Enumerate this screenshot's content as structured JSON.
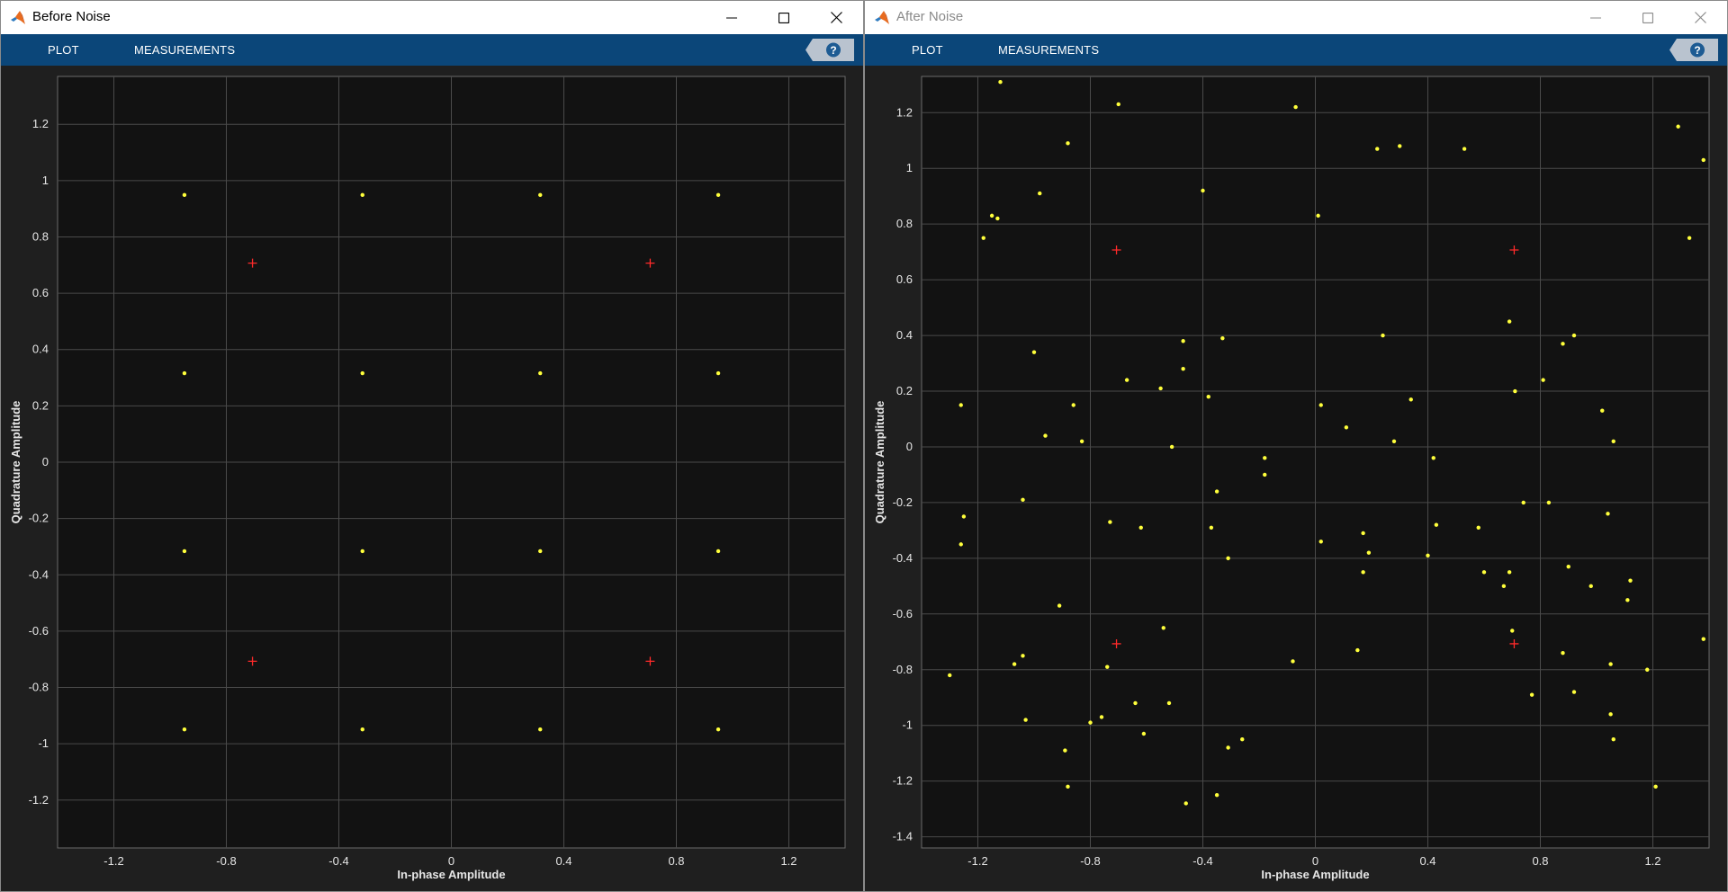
{
  "colors": {
    "toolstrip": "#0b4679",
    "plot_bg": "#121212",
    "frame_bg": "#1f1f1f",
    "grid": "#4a4a4a",
    "sample": "#ffff3b",
    "reference": "#ff2a2a"
  },
  "windows": [
    {
      "id": "left",
      "title": "Before Noise",
      "active": true,
      "tabs": [
        "PLOT",
        "MEASUREMENTS"
      ],
      "help_icon": "question-icon",
      "chart_data": {
        "type": "scatter",
        "title": "",
        "xlabel": "In-phase Amplitude",
        "ylabel": "Quadrature Amplitude",
        "xlim": [
          -1.4,
          1.4
        ],
        "ylim": [
          -1.37,
          1.37
        ],
        "xticks": [
          -1.2,
          -0.8,
          -0.4,
          0,
          0.4,
          0.8,
          1.2
        ],
        "xtick_labels": [
          "-1.2",
          "-0.8",
          "-0.4",
          "0",
          "0.4",
          "0.8",
          "1.2"
        ],
        "yticks": [
          -1.2,
          -1,
          -0.8,
          -0.6,
          -0.4,
          -0.2,
          0,
          0.2,
          0.4,
          0.6,
          0.8,
          1,
          1.2
        ],
        "ytick_labels": [
          "-1.2",
          "-1",
          "-0.8",
          "-0.6",
          "-0.4",
          "-0.2",
          "0",
          "0.2",
          "0.4",
          "0.6",
          "0.8",
          "1",
          "1.2"
        ],
        "grid": true,
        "series": [
          {
            "name": "received-samples",
            "marker": "dot",
            "points": [
              [
                -0.949,
                0.949
              ],
              [
                -0.316,
                0.949
              ],
              [
                0.316,
                0.949
              ],
              [
                0.949,
                0.949
              ],
              [
                -0.949,
                0.316
              ],
              [
                -0.316,
                0.316
              ],
              [
                0.316,
                0.316
              ],
              [
                0.949,
                0.316
              ],
              [
                -0.949,
                -0.316
              ],
              [
                -0.316,
                -0.316
              ],
              [
                0.316,
                -0.316
              ],
              [
                0.949,
                -0.316
              ],
              [
                -0.949,
                -0.949
              ],
              [
                -0.316,
                -0.949
              ],
              [
                0.316,
                -0.949
              ],
              [
                0.949,
                -0.949
              ]
            ]
          },
          {
            "name": "reference-constellation",
            "marker": "plus",
            "points": [
              [
                -0.707,
                0.707
              ],
              [
                0.707,
                0.707
              ],
              [
                -0.707,
                -0.707
              ],
              [
                0.707,
                -0.707
              ]
            ]
          }
        ]
      }
    },
    {
      "id": "right",
      "title": "After Noise",
      "active": false,
      "tabs": [
        "PLOT",
        "MEASUREMENTS"
      ],
      "help_icon": "question-icon",
      "chart_data": {
        "type": "scatter",
        "title": "",
        "xlabel": "In-phase Amplitude",
        "ylabel": "Quadrature Amplitude",
        "xlim": [
          -1.4,
          1.4
        ],
        "ylim": [
          -1.44,
          1.33
        ],
        "xticks": [
          -1.2,
          -0.8,
          -0.4,
          0,
          0.4,
          0.8,
          1.2
        ],
        "xtick_labels": [
          "-1.2",
          "-0.8",
          "-0.4",
          "0",
          "0.4",
          "0.8",
          "1.2"
        ],
        "yticks": [
          -1.4,
          -1.2,
          -1,
          -0.8,
          -0.6,
          -0.4,
          -0.2,
          0,
          0.2,
          0.4,
          0.6,
          0.8,
          1,
          1.2
        ],
        "ytick_labels": [
          "-1.4",
          "-1.2",
          "-1",
          "-0.8",
          "-0.6",
          "-0.4",
          "-0.2",
          "0",
          "0.2",
          "0.4",
          "0.6",
          "0.8",
          "1",
          "1.2"
        ],
        "grid": true,
        "series": [
          {
            "name": "received-samples",
            "marker": "dot",
            "points": [
              [
                -1.12,
                1.31
              ],
              [
                -0.7,
                1.23
              ],
              [
                -0.07,
                1.22
              ],
              [
                -0.88,
                1.09
              ],
              [
                0.22,
                1.07
              ],
              [
                0.3,
                1.08
              ],
              [
                0.53,
                1.07
              ],
              [
                1.29,
                1.15
              ],
              [
                1.38,
                1.03
              ],
              [
                -0.4,
                0.92
              ],
              [
                -0.98,
                0.91
              ],
              [
                -1.15,
                0.83
              ],
              [
                -1.13,
                0.82
              ],
              [
                -1.18,
                0.75
              ],
              [
                0.01,
                0.83
              ],
              [
                1.33,
                0.75
              ],
              [
                -1.0,
                0.34
              ],
              [
                -0.47,
                0.38
              ],
              [
                -0.33,
                0.39
              ],
              [
                0.24,
                0.4
              ],
              [
                0.69,
                0.45
              ],
              [
                0.88,
                0.37
              ],
              [
                0.92,
                0.4
              ],
              [
                -0.47,
                0.28
              ],
              [
                -0.67,
                0.24
              ],
              [
                -0.55,
                0.21
              ],
              [
                -0.38,
                0.18
              ],
              [
                0.02,
                0.15
              ],
              [
                0.34,
                0.17
              ],
              [
                0.71,
                0.2
              ],
              [
                0.81,
                0.24
              ],
              [
                1.02,
                0.13
              ],
              [
                -1.26,
                0.15
              ],
              [
                -0.86,
                0.15
              ],
              [
                -0.96,
                0.04
              ],
              [
                -0.83,
                0.02
              ],
              [
                0.11,
                0.07
              ],
              [
                0.28,
                0.02
              ],
              [
                1.06,
                0.02
              ],
              [
                -0.51,
                0.0
              ],
              [
                -0.18,
                -0.04
              ],
              [
                0.42,
                -0.04
              ],
              [
                -0.18,
                -0.1
              ],
              [
                -0.35,
                -0.16
              ],
              [
                -1.04,
                -0.19
              ],
              [
                -1.25,
                -0.25
              ],
              [
                0.74,
                -0.2
              ],
              [
                0.83,
                -0.2
              ],
              [
                1.04,
                -0.24
              ],
              [
                -0.73,
                -0.27
              ],
              [
                -0.62,
                -0.29
              ],
              [
                -0.37,
                -0.29
              ],
              [
                0.43,
                -0.28
              ],
              [
                0.58,
                -0.29
              ],
              [
                -1.26,
                -0.35
              ],
              [
                0.02,
                -0.34
              ],
              [
                0.17,
                -0.31
              ],
              [
                0.19,
                -0.38
              ],
              [
                0.4,
                -0.39
              ],
              [
                -0.31,
                -0.4
              ],
              [
                0.9,
                -0.43
              ],
              [
                0.17,
                -0.45
              ],
              [
                0.6,
                -0.45
              ],
              [
                0.69,
                -0.45
              ],
              [
                1.12,
                -0.48
              ],
              [
                0.67,
                -0.5
              ],
              [
                0.98,
                -0.5
              ],
              [
                1.11,
                -0.55
              ],
              [
                -0.91,
                -0.57
              ],
              [
                -0.54,
                -0.65
              ],
              [
                0.7,
                -0.66
              ],
              [
                1.38,
                -0.69
              ],
              [
                -0.08,
                -0.77
              ],
              [
                0.15,
                -0.73
              ],
              [
                -1.07,
                -0.78
              ],
              [
                -1.04,
                -0.75
              ],
              [
                -0.74,
                -0.79
              ],
              [
                0.88,
                -0.74
              ],
              [
                1.05,
                -0.78
              ],
              [
                1.18,
                -0.8
              ],
              [
                -1.3,
                -0.82
              ],
              [
                -0.64,
                -0.92
              ],
              [
                -0.52,
                -0.92
              ],
              [
                0.77,
                -0.89
              ],
              [
                0.92,
                -0.88
              ],
              [
                -1.03,
                -0.98
              ],
              [
                -0.76,
                -0.97
              ],
              [
                -0.8,
                -0.99
              ],
              [
                -0.61,
                -1.03
              ],
              [
                1.05,
                -0.96
              ],
              [
                1.06,
                -1.05
              ],
              [
                -0.89,
                -1.09
              ],
              [
                -0.31,
                -1.08
              ],
              [
                -0.26,
                -1.05
              ],
              [
                -0.88,
                -1.22
              ],
              [
                -0.35,
                -1.25
              ],
              [
                -0.46,
                -1.28
              ],
              [
                1.21,
                -1.22
              ]
            ]
          },
          {
            "name": "reference-constellation",
            "marker": "plus",
            "points": [
              [
                -0.707,
                0.707
              ],
              [
                0.707,
                0.707
              ],
              [
                -0.707,
                -0.707
              ],
              [
                0.707,
                -0.707
              ]
            ]
          }
        ]
      }
    }
  ]
}
